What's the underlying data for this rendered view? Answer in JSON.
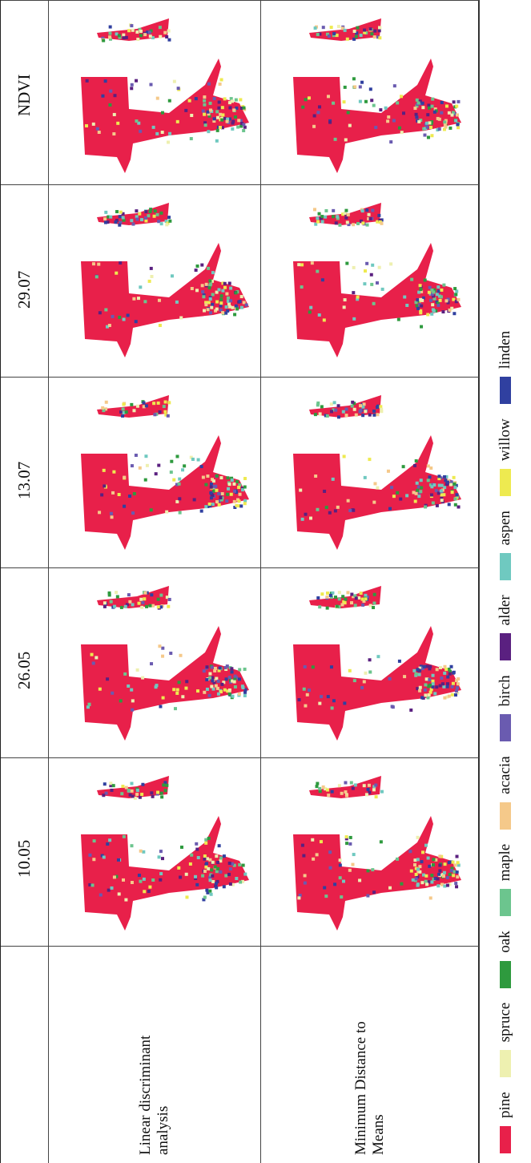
{
  "table": {
    "columns": [
      "10.05",
      "26.05",
      "13.07",
      "29.07",
      "NDVI"
    ],
    "rows": [
      {
        "label": "Linear discriminant analysis"
      },
      {
        "label": "Minimum Distance to Means"
      }
    ]
  },
  "legend": [
    {
      "name": "pine",
      "color": "#e8204a"
    },
    {
      "name": "spruce",
      "color": "#eef0b0"
    },
    {
      "name": "oak",
      "color": "#2e9a3e"
    },
    {
      "name": "maple",
      "color": "#6cc58e"
    },
    {
      "name": "acacia",
      "color": "#f5c98a"
    },
    {
      "name": "birch",
      "color": "#6a5bb0"
    },
    {
      "name": "alder",
      "color": "#5a2080"
    },
    {
      "name": "aspen",
      "color": "#6fc9c0"
    },
    {
      "name": "willow",
      "color": "#eeea50"
    },
    {
      "name": "linden",
      "color": "#3040a0"
    }
  ]
}
